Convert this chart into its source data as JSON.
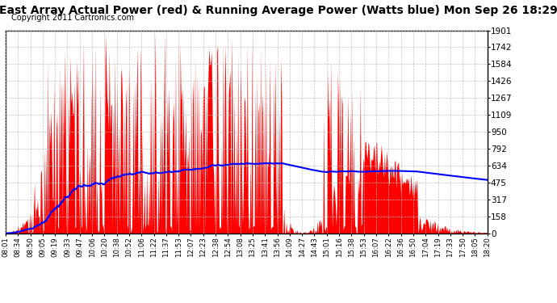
{
  "title": "East Array Actual Power (red) & Running Average Power (Watts blue) Mon Sep 26 18:29",
  "copyright": "Copyright 2011 Cartronics.com",
  "ymax": 1900.8,
  "ymin": 0.0,
  "yticks": [
    0.0,
    158.4,
    316.8,
    475.2,
    633.6,
    792.0,
    950.4,
    1108.8,
    1267.2,
    1425.6,
    1584.0,
    1742.4,
    1900.8
  ],
  "xtick_labels": [
    "08:01",
    "08:34",
    "08:50",
    "09:05",
    "09:19",
    "09:33",
    "09:47",
    "10:06",
    "10:20",
    "10:38",
    "10:52",
    "11:06",
    "11:22",
    "11:37",
    "11:53",
    "12:07",
    "12:23",
    "12:38",
    "12:54",
    "13:08",
    "13:25",
    "13:41",
    "13:56",
    "14:09",
    "14:27",
    "14:43",
    "15:01",
    "15:16",
    "15:38",
    "15:53",
    "16:07",
    "16:22",
    "16:36",
    "16:50",
    "17:04",
    "17:19",
    "17:33",
    "17:50",
    "18:05",
    "18:20"
  ],
  "bar_color": "#FF0000",
  "line_color": "#0000FF",
  "background_color": "#FFFFFF",
  "grid_color": "#BBBBBB",
  "title_fontsize": 10,
  "copyright_fontsize": 7
}
